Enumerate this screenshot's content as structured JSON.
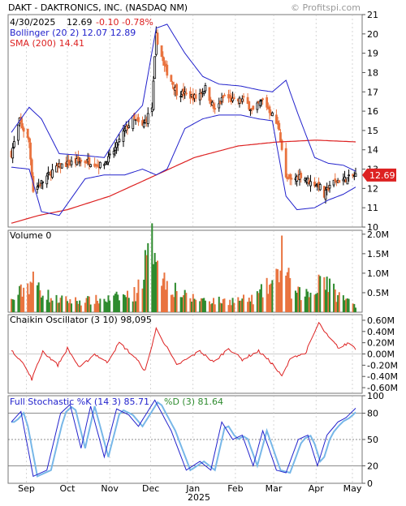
{
  "header": {
    "title": "DAKT - DAKTRONICS, INC. (NASDAQ NM)",
    "watermark": "© Profitspi.com"
  },
  "price_panel": {
    "info_date": "4/30/2025",
    "info_close": "12.69",
    "info_change": "-0.10 -0.78%",
    "bollinger_label": "Bollinger (20 2) 12.07 12.89",
    "sma_label": "SMA (200) 14.41",
    "last_price_label": "12.69",
    "yticks": [
      "21",
      "20",
      "19",
      "18",
      "17",
      "16",
      "15",
      "14",
      "13",
      "12",
      "11",
      "10"
    ]
  },
  "volume_panel": {
    "label": "Volume  0",
    "yticks": [
      "2.0M",
      "1.5M",
      "1.0M",
      "0.5M"
    ]
  },
  "chaikin_panel": {
    "label": "Chaikin Oscillator  (3 10) 98,095",
    "yticks": [
      "0.60M",
      "0.40M",
      "0.20M",
      "0.00M",
      "-0.20M",
      "-0.40M",
      "-0.60M"
    ]
  },
  "stoch_panel": {
    "label_k": "Full Stochastic %K (14 3) 85.71",
    "label_d": "%D (3) 81.64",
    "yticks": [
      "100",
      "80",
      "50",
      "20",
      "0"
    ]
  },
  "x_axis": {
    "months": [
      "Sep",
      "Oct",
      "Nov",
      "Dec",
      "Jan",
      "Feb",
      "Mar",
      "Apr",
      "May"
    ],
    "year": "2025"
  },
  "colors": {
    "up": "#2e8b2e",
    "down": "#e9733f",
    "bollinger": "#2222cc",
    "sma": "#dd2222",
    "chaikin": "#dd2222",
    "stoch_k": "#2222cc",
    "stoch_d": "#77b7e8",
    "price_tag": "#dd2222"
  },
  "chart_data": {
    "type": "candlestick",
    "ticker": "DAKT",
    "period_start": "2024-08-21",
    "period_end": "2025-04-30",
    "price_ylim": [
      10,
      21
    ],
    "volume_ylim": [
      0,
      2.1
    ],
    "chaikin_ylim": [
      -0.7,
      0.7
    ],
    "stoch_ylim": [
      0,
      100
    ],
    "price_anchors": [
      {
        "date": "2024-08-21",
        "close": 13.8
      },
      {
        "date": "2024-08-27",
        "close": 15.5
      },
      {
        "date": "2024-09-03",
        "close": 14.4
      },
      {
        "date": "2024-09-06",
        "close": 11.9
      },
      {
        "date": "2024-09-12",
        "close": 12.3
      },
      {
        "date": "2024-09-20",
        "close": 12.9
      },
      {
        "date": "2024-09-27",
        "close": 13.2
      },
      {
        "date": "2024-10-08",
        "close": 13.4
      },
      {
        "date": "2024-10-18",
        "close": 13.4
      },
      {
        "date": "2024-10-25",
        "close": 13.2
      },
      {
        "date": "2024-10-31",
        "close": 13.5
      },
      {
        "date": "2024-11-06",
        "close": 14.2
      },
      {
        "date": "2024-11-12",
        "close": 15.0
      },
      {
        "date": "2024-11-18",
        "close": 15.6
      },
      {
        "date": "2024-11-25",
        "close": 15.2
      },
      {
        "date": "2024-12-02",
        "close": 16.2
      },
      {
        "date": "2024-12-05",
        "close": 19.9
      },
      {
        "date": "2024-12-11",
        "close": 18.3
      },
      {
        "date": "2024-12-20",
        "close": 17.0
      },
      {
        "date": "2025-01-03",
        "close": 16.7
      },
      {
        "date": "2025-01-10",
        "close": 17.2
      },
      {
        "date": "2025-01-17",
        "close": 16.0
      },
      {
        "date": "2025-01-24",
        "close": 16.8
      },
      {
        "date": "2025-01-31",
        "close": 16.5
      },
      {
        "date": "2025-02-07",
        "close": 16.6
      },
      {
        "date": "2025-02-14",
        "close": 16.0
      },
      {
        "date": "2025-02-21",
        "close": 16.6
      },
      {
        "date": "2025-02-28",
        "close": 15.8
      },
      {
        "date": "2025-03-05",
        "close": 15.1
      },
      {
        "date": "2025-03-10",
        "close": 12.5
      },
      {
        "date": "2025-03-14",
        "close": 12.4
      },
      {
        "date": "2025-03-21",
        "close": 12.7
      },
      {
        "date": "2025-03-28",
        "close": 12.3
      },
      {
        "date": "2025-04-03",
        "close": 12.2
      },
      {
        "date": "2025-04-07",
        "close": 11.6
      },
      {
        "date": "2025-04-11",
        "close": 12.2
      },
      {
        "date": "2025-04-17",
        "close": 12.4
      },
      {
        "date": "2025-04-24",
        "close": 12.5
      },
      {
        "date": "2025-04-30",
        "close": 12.69
      }
    ],
    "bollinger_upper_anchors": [
      {
        "date": "2024-08-21",
        "value": 14.9
      },
      {
        "date": "2024-09-03",
        "value": 16.2
      },
      {
        "date": "2024-09-12",
        "value": 15.6
      },
      {
        "date": "2024-09-25",
        "value": 13.8
      },
      {
        "date": "2024-10-14",
        "value": 13.7
      },
      {
        "date": "2024-10-28",
        "value": 13.6
      },
      {
        "date": "2024-11-12",
        "value": 15.3
      },
      {
        "date": "2024-11-25",
        "value": 16.3
      },
      {
        "date": "2024-12-05",
        "value": 20.3
      },
      {
        "date": "2024-12-13",
        "value": 20.5
      },
      {
        "date": "2024-12-26",
        "value": 19.0
      },
      {
        "date": "2025-01-08",
        "value": 17.8
      },
      {
        "date": "2025-01-20",
        "value": 17.4
      },
      {
        "date": "2025-02-05",
        "value": 17.3
      },
      {
        "date": "2025-02-18",
        "value": 17.1
      },
      {
        "date": "2025-02-28",
        "value": 17.0
      },
      {
        "date": "2025-03-10",
        "value": 17.6
      },
      {
        "date": "2025-03-18",
        "value": 16.0
      },
      {
        "date": "2025-03-31",
        "value": 13.6
      },
      {
        "date": "2025-04-10",
        "value": 13.3
      },
      {
        "date": "2025-04-21",
        "value": 13.2
      },
      {
        "date": "2025-04-30",
        "value": 12.89
      }
    ],
    "bollinger_lower_anchors": [
      {
        "date": "2024-08-21",
        "value": 13.1
      },
      {
        "date": "2024-09-03",
        "value": 13.0
      },
      {
        "date": "2024-09-12",
        "value": 10.8
      },
      {
        "date": "2024-09-25",
        "value": 10.6
      },
      {
        "date": "2024-10-14",
        "value": 12.5
      },
      {
        "date": "2024-10-28",
        "value": 12.7
      },
      {
        "date": "2024-11-12",
        "value": 12.7
      },
      {
        "date": "2024-11-25",
        "value": 13.0
      },
      {
        "date": "2024-12-05",
        "value": 12.7
      },
      {
        "date": "2024-12-13",
        "value": 13.0
      },
      {
        "date": "2024-12-26",
        "value": 15.1
      },
      {
        "date": "2025-01-08",
        "value": 15.6
      },
      {
        "date": "2025-01-20",
        "value": 15.8
      },
      {
        "date": "2025-02-05",
        "value": 15.8
      },
      {
        "date": "2025-02-18",
        "value": 15.6
      },
      {
        "date": "2025-02-28",
        "value": 15.5
      },
      {
        "date": "2025-03-10",
        "value": 11.6
      },
      {
        "date": "2025-03-18",
        "value": 10.9
      },
      {
        "date": "2025-03-31",
        "value": 11.0
      },
      {
        "date": "2025-04-10",
        "value": 11.4
      },
      {
        "date": "2025-04-21",
        "value": 11.7
      },
      {
        "date": "2025-04-30",
        "value": 12.07
      }
    ],
    "sma_anchors": [
      {
        "date": "2024-08-21",
        "value": 10.2
      },
      {
        "date": "2024-09-10",
        "value": 10.6
      },
      {
        "date": "2024-10-01",
        "value": 10.9
      },
      {
        "date": "2024-11-01",
        "value": 11.6
      },
      {
        "date": "2024-12-02",
        "value": 12.6
      },
      {
        "date": "2025-01-02",
        "value": 13.6
      },
      {
        "date": "2025-02-03",
        "value": 14.2
      },
      {
        "date": "2025-03-03",
        "value": 14.4
      },
      {
        "date": "2025-04-01",
        "value": 14.5
      },
      {
        "date": "2025-04-30",
        "value": 14.41
      }
    ],
    "volume_millions_anchors": [
      {
        "date": "2024-08-21",
        "value": 0.3
      },
      {
        "date": "2024-09-05",
        "value": 0.85
      },
      {
        "date": "2024-09-20",
        "value": 0.35
      },
      {
        "date": "2024-10-10",
        "value": 0.3
      },
      {
        "date": "2024-10-31",
        "value": 0.35
      },
      {
        "date": "2024-11-20",
        "value": 0.5
      },
      {
        "date": "2024-12-04",
        "value": 2.0
      },
      {
        "date": "2024-12-10",
        "value": 0.9
      },
      {
        "date": "2024-12-27",
        "value": 0.4
      },
      {
        "date": "2025-01-20",
        "value": 0.3
      },
      {
        "date": "2025-02-14",
        "value": 0.35
      },
      {
        "date": "2025-03-04",
        "value": 0.9
      },
      {
        "date": "2025-03-07",
        "value": 1.75
      },
      {
        "date": "2025-03-14",
        "value": 0.5
      },
      {
        "date": "2025-03-31",
        "value": 0.5
      },
      {
        "date": "2025-04-04",
        "value": 1.1
      },
      {
        "date": "2025-04-15",
        "value": 0.5
      },
      {
        "date": "2025-04-30",
        "value": 0.2
      }
    ],
    "chaikin_millions_anchors": [
      {
        "date": "2024-08-21",
        "value": 0.05
      },
      {
        "date": "2024-08-28",
        "value": -0.1
      },
      {
        "date": "2024-09-05",
        "value": -0.45
      },
      {
        "date": "2024-09-13",
        "value": 0.05
      },
      {
        "date": "2024-09-24",
        "value": -0.2
      },
      {
        "date": "2024-10-01",
        "value": 0.1
      },
      {
        "date": "2024-10-10",
        "value": -0.25
      },
      {
        "date": "2024-10-21",
        "value": 0.0
      },
      {
        "date": "2024-10-30",
        "value": -0.15
      },
      {
        "date": "2024-11-08",
        "value": 0.2
      },
      {
        "date": "2024-11-19",
        "value": -0.05
      },
      {
        "date": "2024-11-27",
        "value": -0.3
      },
      {
        "date": "2024-12-05",
        "value": 0.45
      },
      {
        "date": "2024-12-12",
        "value": 0.15
      },
      {
        "date": "2024-12-20",
        "value": -0.2
      },
      {
        "date": "2025-01-06",
        "value": 0.05
      },
      {
        "date": "2025-01-16",
        "value": -0.15
      },
      {
        "date": "2025-01-27",
        "value": 0.1
      },
      {
        "date": "2025-02-06",
        "value": -0.1
      },
      {
        "date": "2025-02-18",
        "value": 0.05
      },
      {
        "date": "2025-02-27",
        "value": -0.15
      },
      {
        "date": "2025-03-07",
        "value": -0.4
      },
      {
        "date": "2025-03-14",
        "value": -0.05
      },
      {
        "date": "2025-03-24",
        "value": 0.0
      },
      {
        "date": "2025-04-03",
        "value": 0.55
      },
      {
        "date": "2025-04-10",
        "value": 0.3
      },
      {
        "date": "2025-04-18",
        "value": 0.1
      },
      {
        "date": "2025-04-25",
        "value": 0.2
      },
      {
        "date": "2025-04-30",
        "value": 0.1
      }
    ],
    "stoch_k_anchors": [
      {
        "date": "2024-08-21",
        "value": 70
      },
      {
        "date": "2024-08-28",
        "value": 82
      },
      {
        "date": "2024-09-06",
        "value": 8
      },
      {
        "date": "2024-09-16",
        "value": 15
      },
      {
        "date": "2024-09-26",
        "value": 80
      },
      {
        "date": "2024-10-03",
        "value": 90
      },
      {
        "date": "2024-10-11",
        "value": 40
      },
      {
        "date": "2024-10-18",
        "value": 88
      },
      {
        "date": "2024-10-28",
        "value": 30
      },
      {
        "date": "2024-11-06",
        "value": 85
      },
      {
        "date": "2024-11-15",
        "value": 78
      },
      {
        "date": "2024-11-22",
        "value": 65
      },
      {
        "date": "2024-12-04",
        "value": 95
      },
      {
        "date": "2024-12-16",
        "value": 60
      },
      {
        "date": "2024-12-27",
        "value": 15
      },
      {
        "date": "2025-01-06",
        "value": 25
      },
      {
        "date": "2025-01-14",
        "value": 15
      },
      {
        "date": "2025-01-22",
        "value": 70
      },
      {
        "date": "2025-01-30",
        "value": 50
      },
      {
        "date": "2025-02-06",
        "value": 55
      },
      {
        "date": "2025-02-14",
        "value": 20
      },
      {
        "date": "2025-02-21",
        "value": 60
      },
      {
        "date": "2025-03-03",
        "value": 15
      },
      {
        "date": "2025-03-10",
        "value": 12
      },
      {
        "date": "2025-03-19",
        "value": 50
      },
      {
        "date": "2025-03-26",
        "value": 55
      },
      {
        "date": "2025-04-02",
        "value": 20
      },
      {
        "date": "2025-04-09",
        "value": 55
      },
      {
        "date": "2025-04-17",
        "value": 70
      },
      {
        "date": "2025-04-23",
        "value": 75
      },
      {
        "date": "2025-04-30",
        "value": 85.71
      }
    ],
    "stoch_d_last": 81.64
  }
}
